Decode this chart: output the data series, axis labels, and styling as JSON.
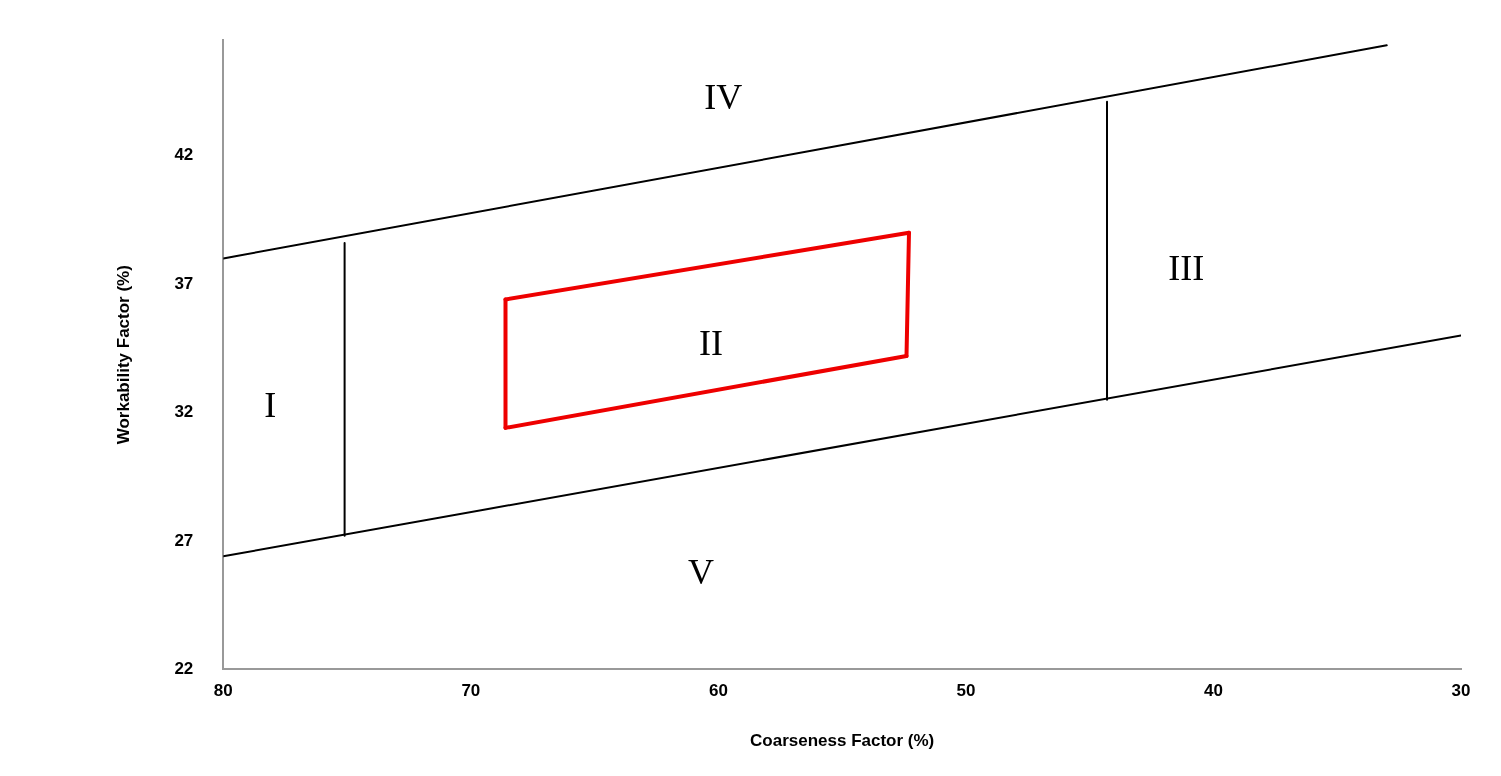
{
  "chart_data": {
    "type": "line",
    "xlabel": "Coarseness Factor (%)",
    "ylabel": "Workability Factor (%)",
    "xlim": [
      80,
      30
    ],
    "ylim": [
      22,
      46.5
    ],
    "xticks": [
      80,
      70,
      60,
      50,
      40,
      30
    ],
    "yticks": [
      22,
      27,
      32,
      37,
      42
    ],
    "grid": false,
    "legend": false,
    "marker": "none",
    "line_style": "solid",
    "series": [
      {
        "x": [
          80,
          33
        ],
        "values": [
          38,
          46.3
        ],
        "color": "#000000"
      },
      {
        "x": [
          80,
          30
        ],
        "values": [
          26.4,
          35
        ],
        "color": "#000000"
      },
      {
        "x": [
          75.1,
          75.1
        ],
        "values": [
          38.6,
          27.2
        ],
        "color": "#000000"
      },
      {
        "x": [
          44.3,
          44.3
        ],
        "values": [
          44.1,
          32.5
        ],
        "color": "#000000"
      },
      {
        "x": [
          68.6,
          52.3
        ],
        "values": [
          36.4,
          39
        ],
        "color": "#ee0000"
      },
      {
        "x": [
          52.3,
          52.4
        ],
        "values": [
          39,
          34.2
        ],
        "color": "#ee0000"
      },
      {
        "x": [
          52.4,
          68.6
        ],
        "values": [
          34.2,
          31.4
        ],
        "color": "#ee0000"
      },
      {
        "x": [
          68.6,
          68.6
        ],
        "values": [
          31.4,
          36.4
        ],
        "color": "#ee0000"
      }
    ],
    "annotations": [
      "IV",
      "III",
      "II",
      "I",
      "V"
    ]
  }
}
